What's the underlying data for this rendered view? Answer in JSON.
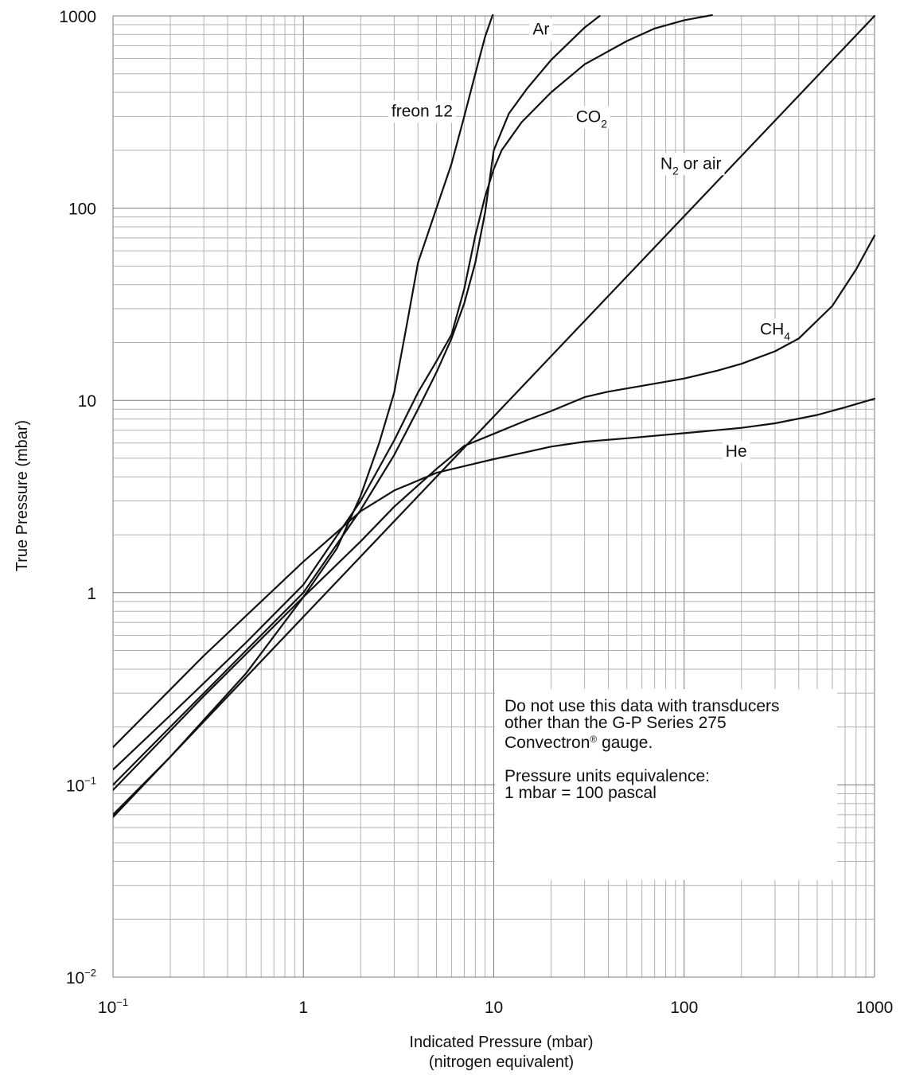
{
  "chart_data": {
    "type": "line",
    "scale": {
      "x": "log",
      "y": "log"
    },
    "xlim": [
      0.1,
      1000
    ],
    "ylim": [
      0.01,
      1000
    ],
    "grid": true,
    "xlabel": "Indicated Pressure (mbar)",
    "xlabel_line2": "(nitrogen equivalent)",
    "ylabel": "True Pressure (mbar)",
    "x_ticks": [
      {
        "value": 0.1,
        "mantissa": "10",
        "exp": "−1"
      },
      {
        "value": 1,
        "mantissa": "1",
        "exp": ""
      },
      {
        "value": 10,
        "mantissa": "10",
        "exp": ""
      },
      {
        "value": 100,
        "mantissa": "100",
        "exp": ""
      },
      {
        "value": 1000,
        "mantissa": "1000",
        "exp": ""
      }
    ],
    "y_ticks": [
      {
        "value": 0.01,
        "mantissa": "10",
        "exp": "−2"
      },
      {
        "value": 0.1,
        "mantissa": "10",
        "exp": "−1"
      },
      {
        "value": 1,
        "mantissa": "1",
        "exp": ""
      },
      {
        "value": 10,
        "mantissa": "10",
        "exp": ""
      },
      {
        "value": 100,
        "mantissa": "100",
        "exp": ""
      },
      {
        "value": 1000,
        "mantissa": "1000",
        "exp": ""
      }
    ],
    "series": [
      {
        "name": "freon 12",
        "label_base": "freon 12",
        "label_sub": "",
        "label_rest": "",
        "label_at": [
          2.9,
          300
        ],
        "x": [
          0.1,
          0.2,
          0.5,
          1,
          1.5,
          2,
          2.5,
          3,
          3.5,
          4,
          5,
          6,
          7,
          8,
          9,
          10
        ],
        "y": [
          0.07,
          0.14,
          0.38,
          0.95,
          1.7,
          3.2,
          6,
          11,
          25,
          52,
          100,
          170,
          300,
          500,
          780,
          1050
        ]
      },
      {
        "name": "Ar",
        "label_base": "Ar",
        "label_sub": "",
        "label_rest": "",
        "label_at": [
          16,
          800
        ],
        "x": [
          0.1,
          0.5,
          1,
          2,
          3,
          4,
          5,
          6,
          7,
          8,
          9,
          10,
          12,
          15,
          20,
          30,
          36
        ],
        "y": [
          0.1,
          0.5,
          1.0,
          2.7,
          5.2,
          9,
          14,
          21,
          32,
          52,
          95,
          200,
          310,
          420,
          590,
          870,
          1000
        ]
      },
      {
        "name": "CO2",
        "label_base": "CO",
        "label_sub": "2",
        "label_rest": "",
        "label_at": [
          27,
          280
        ],
        "x": [
          0.1,
          0.2,
          0.5,
          1,
          2,
          3,
          4,
          5,
          6,
          7,
          8,
          9,
          10,
          11,
          14,
          20,
          30,
          50,
          70,
          100,
          140
        ],
        "y": [
          0.12,
          0.23,
          0.55,
          1.1,
          3.0,
          6.2,
          11,
          16,
          22,
          38,
          72,
          115,
          160,
          200,
          280,
          400,
          560,
          740,
          860,
          950,
          1010
        ]
      },
      {
        "name": "N2 or air",
        "label_base": "N",
        "label_sub": "2",
        "label_rest": " or air",
        "label_at": [
          75,
          160
        ],
        "x": [
          0.1,
          1000
        ],
        "y": [
          0.068,
          1000
        ]
      },
      {
        "name": "CH4",
        "label_base": "CH",
        "label_sub": "4",
        "label_rest": "",
        "label_at": [
          250,
          22
        ],
        "x": [
          0.1,
          0.3,
          1,
          2,
          3,
          5,
          7,
          10,
          15,
          20,
          30,
          40,
          60,
          100,
          150,
          200,
          300,
          400,
          600,
          800,
          1000
        ],
        "y": [
          0.094,
          0.29,
          0.95,
          1.85,
          2.8,
          4.4,
          5.8,
          6.7,
          7.9,
          8.8,
          10.4,
          11.1,
          11.9,
          13,
          14.3,
          15.5,
          18,
          21,
          31,
          48,
          72
        ]
      },
      {
        "name": "He",
        "label_base": "He",
        "label_sub": "",
        "label_rest": "",
        "label_at": [
          165,
          5.1
        ],
        "x": [
          0.1,
          0.3,
          1,
          2,
          3,
          5,
          7,
          10,
          15,
          20,
          30,
          50,
          100,
          200,
          300,
          500,
          700,
          1000
        ],
        "y": [
          0.157,
          0.47,
          1.45,
          2.65,
          3.4,
          4.2,
          4.55,
          4.95,
          5.4,
          5.75,
          6.1,
          6.35,
          6.75,
          7.2,
          7.6,
          8.4,
          9.2,
          10.2
        ]
      }
    ]
  },
  "note": {
    "line1": "Do not use this data with transducers",
    "line2": "other than the G-P Series 275",
    "line3_pre": "Convectron",
    "line3_reg": "®",
    "line3_post": " gauge.",
    "line4": "Pressure units equivalence:",
    "line5": "1 mbar = 100 pascal"
  }
}
